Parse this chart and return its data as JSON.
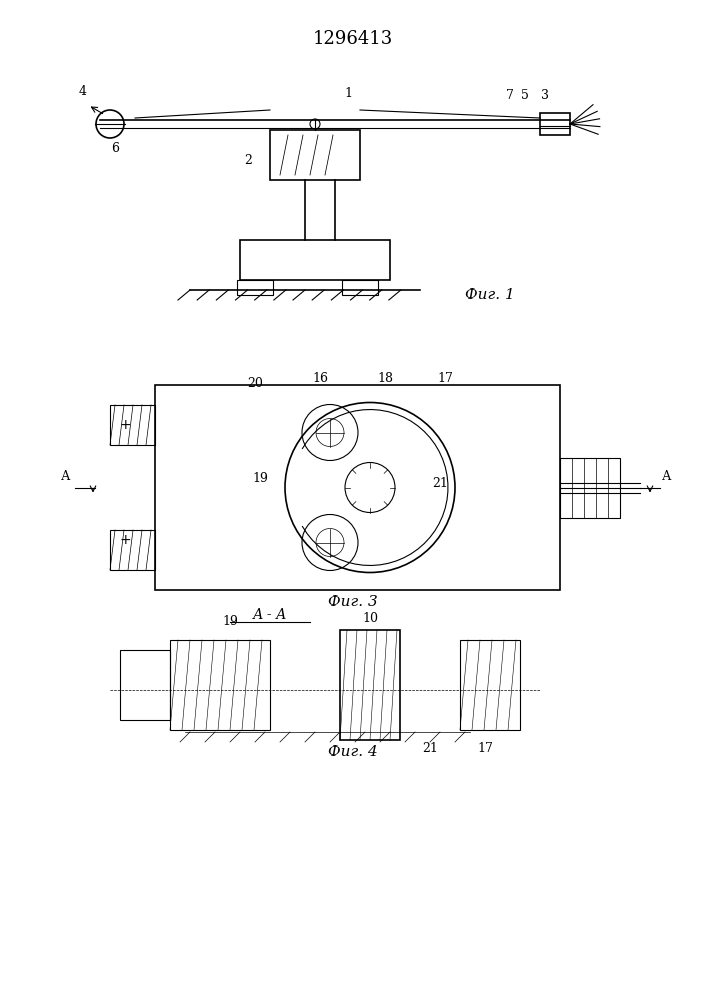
{
  "title": "1296413",
  "fig1_caption": "Фиг. 1",
  "fig3_caption": "Фиг. 3",
  "fig4_caption": "Фиг. 4",
  "section_label": "А - А",
  "bg_color": "#ffffff",
  "line_color": "#000000",
  "hatch_color": "#000000",
  "title_fontsize": 13,
  "label_fontsize": 9,
  "caption_fontsize": 11
}
